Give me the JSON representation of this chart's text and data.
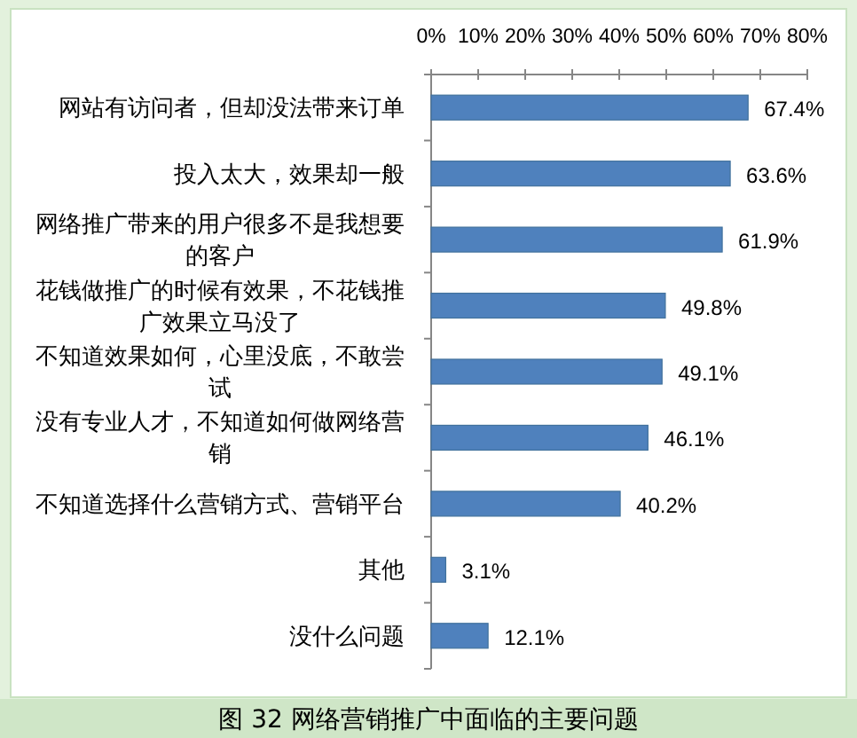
{
  "chart_data": {
    "type": "bar",
    "orientation": "horizontal",
    "title": "图 32 网络营销推广中面临的主要问题",
    "categories": [
      "网站有访问者，但却没法带来订单",
      "投入太大，效果却一般",
      "网络推广带来的用户很多不是我想要的客户",
      "花钱做推广的时候有效果，不花钱推广效果立马没了",
      "不知道效果如何，心里没底，不敢尝试",
      "没有专业人才，不知道如何做网络营销",
      "不知道选择什么营销方式、营销平台",
      "其他",
      "没什么问题"
    ],
    "values": [
      67.4,
      63.6,
      61.9,
      49.8,
      49.1,
      46.1,
      40.2,
      3.1,
      12.1
    ],
    "value_labels": [
      "67.4%",
      "63.6%",
      "61.9%",
      "49.8%",
      "49.1%",
      "46.1%",
      "40.2%",
      "3.1%",
      "12.1%"
    ],
    "color": "#4f81bd",
    "xlim": [
      0,
      80
    ],
    "xticks": [
      {
        "value": 0,
        "label": "0%"
      },
      {
        "value": 10,
        "label": "10%"
      },
      {
        "value": 20,
        "label": "20%"
      },
      {
        "value": 30,
        "label": "30%"
      },
      {
        "value": 40,
        "label": "40%"
      },
      {
        "value": 50,
        "label": "50%"
      },
      {
        "value": 60,
        "label": "60%"
      },
      {
        "value": 70,
        "label": "70%"
      },
      {
        "value": 80,
        "label": "80%"
      }
    ]
  }
}
